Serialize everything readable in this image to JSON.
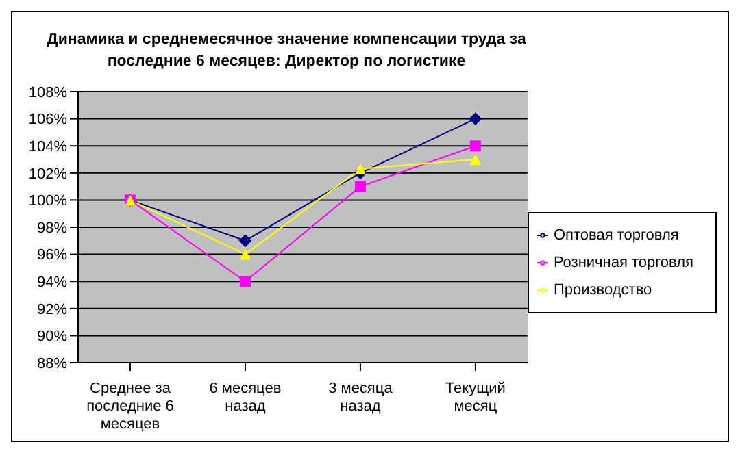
{
  "chart_data": {
    "type": "line",
    "title": "Динамика и среднемесячное значение компенсации труда за последние 6 месяцев: Директор по логистике",
    "categories": [
      "Среднее за последние 6 месяцев",
      "6 месяцев назад",
      "3 месяца назад",
      "Текущий месяц"
    ],
    "series": [
      {
        "name": "Оптовая торговля",
        "color": "#000080",
        "marker": "diamond",
        "values": [
          100,
          97,
          102,
          106
        ]
      },
      {
        "name": "Розничная торговля",
        "color": "#ff00ff",
        "marker": "square",
        "values": [
          100,
          94,
          101,
          104
        ]
      },
      {
        "name": "Производство",
        "color": "#ffff00",
        "marker": "triangle",
        "values": [
          100,
          96,
          102.3,
          103
        ]
      }
    ],
    "ylim": [
      88,
      108
    ],
    "yticks": [
      {
        "value": 88,
        "label": "88%"
      },
      {
        "value": 90,
        "label": "90%"
      },
      {
        "value": 92,
        "label": "92%"
      },
      {
        "value": 94,
        "label": "94%"
      },
      {
        "value": 96,
        "label": "96%"
      },
      {
        "value": 98,
        "label": "98%"
      },
      {
        "value": 100,
        "label": "100%"
      },
      {
        "value": 102,
        "label": "102%"
      },
      {
        "value": 104,
        "label": "104%"
      },
      {
        "value": 106,
        "label": "106%"
      },
      {
        "value": 108,
        "label": "108%"
      }
    ],
    "grid": "y",
    "legend": "right",
    "line_style": "solid"
  }
}
